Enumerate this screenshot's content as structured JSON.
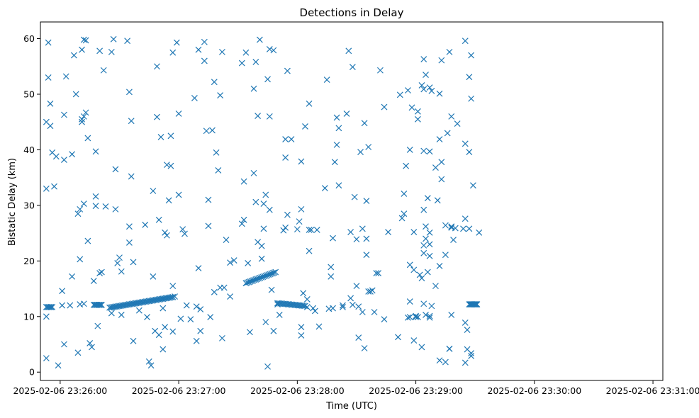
{
  "chart_data": {
    "type": "scatter",
    "title": "Detections in Delay",
    "xlabel": "Time (UTC)",
    "ylabel": "Bistatic Delay (km)",
    "marker": "x",
    "color": "#1f77b4",
    "grid": false,
    "xlim": [
      "2025-02-06 23:25:50",
      "2025-02-06 23:31:05"
    ],
    "ylim": [
      -1.5,
      63
    ],
    "xticks": [
      "2025-02-06 23:26:00",
      "2025-02-06 23:27:00",
      "2025-02-06 23:28:00",
      "2025-02-06 23:29:00",
      "2025-02-06 23:30:00",
      "2025-02-06 23:31:00"
    ],
    "yticks": [
      0,
      10,
      20,
      30,
      40,
      50,
      60
    ],
    "x_format": "2025-02-06 HH:MM:SS (x values below are times HH:MM:SS)",
    "points": [
      [
        "23:25:53",
        45.0
      ],
      [
        "23:25:53",
        33.0
      ],
      [
        "23:25:53",
        10.0
      ],
      [
        "23:25:53",
        2.5
      ],
      [
        "23:25:54",
        59.3
      ],
      [
        "23:25:54",
        53.0
      ],
      [
        "23:25:55",
        44.3
      ],
      [
        "23:25:55",
        48.3
      ],
      [
        "23:25:56",
        39.5
      ],
      [
        "23:25:57",
        33.4
      ],
      [
        "23:25:58",
        38.8
      ],
      [
        "23:25:59",
        1.2
      ],
      [
        "23:26:01",
        12.0
      ],
      [
        "23:26:01",
        14.6
      ],
      [
        "23:26:02",
        38.2
      ],
      [
        "23:26:02",
        46.3
      ],
      [
        "23:26:02",
        5.0
      ],
      [
        "23:26:03",
        53.2
      ],
      [
        "23:26:05",
        12.0
      ],
      [
        "23:26:06",
        39.2
      ],
      [
        "23:26:06",
        17.2
      ],
      [
        "23:26:07",
        57.0
      ],
      [
        "23:26:08",
        50.0
      ],
      [
        "23:26:09",
        3.5
      ],
      [
        "23:26:09",
        28.5
      ],
      [
        "23:26:10",
        29.3
      ],
      [
        "23:26:10",
        20.3
      ],
      [
        "23:26:10",
        12.2
      ],
      [
        "23:26:11",
        45.5
      ],
      [
        "23:26:11",
        45.0
      ],
      [
        "23:26:11",
        58.0
      ],
      [
        "23:26:12",
        46.0
      ],
      [
        "23:26:12",
        59.8
      ],
      [
        "23:26:12",
        30.3
      ],
      [
        "23:26:12",
        12.3
      ],
      [
        "23:26:13",
        59.7
      ],
      [
        "23:26:13",
        46.7
      ],
      [
        "23:26:14",
        42.1
      ],
      [
        "23:26:14",
        23.6
      ],
      [
        "23:26:15",
        5.2
      ],
      [
        "23:26:16",
        4.5
      ],
      [
        "23:26:17",
        16.4
      ],
      [
        "23:26:18",
        39.7
      ],
      [
        "23:26:18",
        31.6
      ],
      [
        "23:26:18",
        29.9
      ],
      [
        "23:26:19",
        8.3
      ],
      [
        "23:26:20",
        57.8
      ],
      [
        "23:26:20",
        17.8
      ],
      [
        "23:26:21",
        18.0
      ],
      [
        "23:26:22",
        54.3
      ],
      [
        "23:26:23",
        29.8
      ],
      [
        "23:26:26",
        57.6
      ],
      [
        "23:26:26",
        10.6
      ],
      [
        "23:26:27",
        59.9
      ],
      [
        "23:26:28",
        29.3
      ],
      [
        "23:26:28",
        36.5
      ],
      [
        "23:26:29",
        19.6
      ],
      [
        "23:26:30",
        20.6
      ],
      [
        "23:26:31",
        18.1
      ],
      [
        "23:26:31",
        10.3
      ],
      [
        "23:26:34",
        59.6
      ],
      [
        "23:26:35",
        50.4
      ],
      [
        "23:26:35",
        26.2
      ],
      [
        "23:26:35",
        23.3
      ],
      [
        "23:26:36",
        45.2
      ],
      [
        "23:26:36",
        35.2
      ],
      [
        "23:26:37",
        19.8
      ],
      [
        "23:26:37",
        5.6
      ],
      [
        "23:26:40",
        11.1
      ],
      [
        "23:26:43",
        26.5
      ],
      [
        "23:26:44",
        9.9
      ],
      [
        "23:26:45",
        1.9
      ],
      [
        "23:26:46",
        1.2
      ],
      [
        "23:26:47",
        17.2
      ],
      [
        "23:26:47",
        32.6
      ],
      [
        "23:26:48",
        7.4
      ],
      [
        "23:26:49",
        55.0
      ],
      [
        "23:26:49",
        45.9
      ],
      [
        "23:26:50",
        27.4
      ],
      [
        "23:26:50",
        6.7
      ],
      [
        "23:26:51",
        42.3
      ],
      [
        "23:26:52",
        11.5
      ],
      [
        "23:26:52",
        4.1
      ],
      [
        "23:26:53",
        25.1
      ],
      [
        "23:26:53",
        8.1
      ],
      [
        "23:26:54",
        37.3
      ],
      [
        "23:26:54",
        24.6
      ],
      [
        "23:26:55",
        30.9
      ],
      [
        "23:26:56",
        42.5
      ],
      [
        "23:26:56",
        37.1
      ],
      [
        "23:26:57",
        57.5
      ],
      [
        "23:26:57",
        15.5
      ],
      [
        "23:26:57",
        7.3
      ],
      [
        "23:26:58",
        13.6
      ],
      [
        "23:26:59",
        59.3
      ],
      [
        "23:27:00",
        46.5
      ],
      [
        "23:27:00",
        31.9
      ],
      [
        "23:27:01",
        9.6
      ],
      [
        "23:27:02",
        25.7
      ],
      [
        "23:27:03",
        24.9
      ],
      [
        "23:27:04",
        12.0
      ],
      [
        "23:27:06",
        9.5
      ],
      [
        "23:27:08",
        49.3
      ],
      [
        "23:27:09",
        5.6
      ],
      [
        "23:27:09",
        11.8
      ],
      [
        "23:27:10",
        18.7
      ],
      [
        "23:27:10",
        58.0
      ],
      [
        "23:27:11",
        11.3
      ],
      [
        "23:27:11",
        7.4
      ],
      [
        "23:27:13",
        59.4
      ],
      [
        "23:27:13",
        56.0
      ],
      [
        "23:27:14",
        43.4
      ],
      [
        "23:27:15",
        26.3
      ],
      [
        "23:27:15",
        31.0
      ],
      [
        "23:27:16",
        9.9
      ],
      [
        "23:27:17",
        43.5
      ],
      [
        "23:27:18",
        52.2
      ],
      [
        "23:27:18",
        14.4
      ],
      [
        "23:27:19",
        39.5
      ],
      [
        "23:27:20",
        36.3
      ],
      [
        "23:27:21",
        49.8
      ],
      [
        "23:27:21",
        15.2
      ],
      [
        "23:27:22",
        6.1
      ],
      [
        "23:27:22",
        57.6
      ],
      [
        "23:27:23",
        15.2
      ],
      [
        "23:27:24",
        23.8
      ],
      [
        "23:27:26",
        19.7
      ],
      [
        "23:27:26",
        13.6
      ],
      [
        "23:27:28",
        20.1
      ],
      [
        "23:27:32",
        26.7
      ],
      [
        "23:27:32",
        55.6
      ],
      [
        "23:27:33",
        34.3
      ],
      [
        "23:27:33",
        27.4
      ],
      [
        "23:27:34",
        57.5
      ],
      [
        "23:27:35",
        19.6
      ],
      [
        "23:27:36",
        7.2
      ],
      [
        "23:27:38",
        51.0
      ],
      [
        "23:27:38",
        35.8
      ],
      [
        "23:27:39",
        55.8
      ],
      [
        "23:27:39",
        30.6
      ],
      [
        "23:27:40",
        23.4
      ],
      [
        "23:27:40",
        46.1
      ],
      [
        "23:27:41",
        59.8
      ],
      [
        "23:27:42",
        20.4
      ],
      [
        "23:27:42",
        22.7
      ],
      [
        "23:27:43",
        25.8
      ],
      [
        "23:27:43",
        30.3
      ],
      [
        "23:27:44",
        31.9
      ],
      [
        "23:27:44",
        9.0
      ],
      [
        "23:27:45",
        1.0
      ],
      [
        "23:27:45",
        52.7
      ],
      [
        "23:27:46",
        58.1
      ],
      [
        "23:27:46",
        46.0
      ],
      [
        "23:27:46",
        29.2
      ],
      [
        "23:27:47",
        14.8
      ],
      [
        "23:27:48",
        7.4
      ],
      [
        "23:27:48",
        57.9
      ],
      [
        "23:27:50",
        12.2
      ],
      [
        "23:27:51",
        10.3
      ],
      [
        "23:27:53",
        25.5
      ],
      [
        "23:27:54",
        26.0
      ],
      [
        "23:27:54",
        38.6
      ],
      [
        "23:27:54",
        41.9
      ],
      [
        "23:27:55",
        54.2
      ],
      [
        "23:27:55",
        28.3
      ],
      [
        "23:27:57",
        41.9
      ],
      [
        "23:28:00",
        25.7
      ],
      [
        "23:28:01",
        27.1
      ],
      [
        "23:28:02",
        37.9
      ],
      [
        "23:28:02",
        29.3
      ],
      [
        "23:28:02",
        8.1
      ],
      [
        "23:28:02",
        6.6
      ],
      [
        "23:28:03",
        14.2
      ],
      [
        "23:28:04",
        44.2
      ],
      [
        "23:28:05",
        11.7
      ],
      [
        "23:28:05",
        13.1
      ],
      [
        "23:28:06",
        21.8
      ],
      [
        "23:28:06",
        48.3
      ],
      [
        "23:28:06",
        25.6
      ],
      [
        "23:28:07",
        25.6
      ],
      [
        "23:28:08",
        11.5
      ],
      [
        "23:28:09",
        11.0
      ],
      [
        "23:28:10",
        25.6
      ],
      [
        "23:28:11",
        8.2
      ],
      [
        "23:28:14",
        33.1
      ],
      [
        "23:28:15",
        52.6
      ],
      [
        "23:28:16",
        11.4
      ],
      [
        "23:28:17",
        17.2
      ],
      [
        "23:28:17",
        18.9
      ],
      [
        "23:28:18",
        24.1
      ],
      [
        "23:28:18",
        11.5
      ],
      [
        "23:28:19",
        37.8
      ],
      [
        "23:28:20",
        45.8
      ],
      [
        "23:28:20",
        40.9
      ],
      [
        "23:28:21",
        33.6
      ],
      [
        "23:28:21",
        43.9
      ],
      [
        "23:28:23",
        12.0
      ],
      [
        "23:28:23",
        11.7
      ],
      [
        "23:28:25",
        46.5
      ],
      [
        "23:28:26",
        57.8
      ],
      [
        "23:28:27",
        13.3
      ],
      [
        "23:28:27",
        25.2
      ],
      [
        "23:28:28",
        54.9
      ],
      [
        "23:28:28",
        12.1
      ],
      [
        "23:28:29",
        31.5
      ],
      [
        "23:28:30",
        23.9
      ],
      [
        "23:28:30",
        15.5
      ],
      [
        "23:28:31",
        6.2
      ],
      [
        "23:28:31",
        11.8
      ],
      [
        "23:28:32",
        39.6
      ],
      [
        "23:28:33",
        25.8
      ],
      [
        "23:28:33",
        10.8
      ],
      [
        "23:28:34",
        44.8
      ],
      [
        "23:28:34",
        4.3
      ],
      [
        "23:28:35",
        21.1
      ],
      [
        "23:28:35",
        30.8
      ],
      [
        "23:28:35",
        24.0
      ],
      [
        "23:28:36",
        14.5
      ],
      [
        "23:28:36",
        40.5
      ],
      [
        "23:28:37",
        14.5
      ],
      [
        "23:28:38",
        14.7
      ],
      [
        "23:28:39",
        10.8
      ],
      [
        "23:28:40",
        17.8
      ],
      [
        "23:28:41",
        17.8
      ],
      [
        "23:28:42",
        54.3
      ],
      [
        "23:28:44",
        9.5
      ],
      [
        "23:28:44",
        47.7
      ],
      [
        "23:28:46",
        25.2
      ],
      [
        "23:28:51",
        6.3
      ],
      [
        "23:28:52",
        49.9
      ],
      [
        "23:28:53",
        27.7
      ],
      [
        "23:28:54",
        28.5
      ],
      [
        "23:28:54",
        32.1
      ],
      [
        "23:28:55",
        37.1
      ],
      [
        "23:28:56",
        50.7
      ],
      [
        "23:28:56",
        9.8
      ],
      [
        "23:28:57",
        12.7
      ],
      [
        "23:28:57",
        9.9
      ],
      [
        "23:28:57",
        40.0
      ],
      [
        "23:28:57",
        19.3
      ],
      [
        "23:28:58",
        47.6
      ],
      [
        "23:28:59",
        5.7
      ],
      [
        "23:28:59",
        18.4
      ],
      [
        "23:28:59",
        25.2
      ],
      [
        "23:29:00",
        9.9
      ],
      [
        "23:29:00",
        10.1
      ],
      [
        "23:29:01",
        9.9
      ],
      [
        "23:29:01",
        45.5
      ],
      [
        "23:29:01",
        46.9
      ],
      [
        "23:29:02",
        17.5
      ],
      [
        "23:29:03",
        4.5
      ],
      [
        "23:29:03",
        16.9
      ],
      [
        "23:29:03",
        51.6
      ],
      [
        "23:29:04",
        50.9
      ],
      [
        "23:29:04",
        56.3
      ],
      [
        "23:29:04",
        39.8
      ],
      [
        "23:29:04",
        22.8
      ],
      [
        "23:29:04",
        21.4
      ],
      [
        "23:29:04",
        29.2
      ],
      [
        "23:29:04",
        12.3
      ],
      [
        "23:29:05",
        53.5
      ],
      [
        "23:29:05",
        24.0
      ],
      [
        "23:29:05",
        26.2
      ],
      [
        "23:29:05",
        10.3
      ],
      [
        "23:29:06",
        31.3
      ],
      [
        "23:29:06",
        18.0
      ],
      [
        "23:29:07",
        10.1
      ],
      [
        "23:29:07",
        51.2
      ],
      [
        "23:29:07",
        39.7
      ],
      [
        "23:29:07",
        23.0
      ],
      [
        "23:29:07",
        20.9
      ],
      [
        "23:29:07",
        25.1
      ],
      [
        "23:29:07",
        9.8
      ],
      [
        "23:29:08",
        50.6
      ],
      [
        "23:29:08",
        11.9
      ],
      [
        "23:29:10",
        36.8
      ],
      [
        "23:29:10",
        15.5
      ],
      [
        "23:29:11",
        30.9
      ],
      [
        "23:29:12",
        41.9
      ],
      [
        "23:29:12",
        50.1
      ],
      [
        "23:29:12",
        19.1
      ],
      [
        "23:29:12",
        2.1
      ],
      [
        "23:29:13",
        56.1
      ],
      [
        "23:29:13",
        37.8
      ],
      [
        "23:29:13",
        34.7
      ],
      [
        "23:29:15",
        26.4
      ],
      [
        "23:29:15",
        21.1
      ],
      [
        "23:29:15",
        1.8
      ],
      [
        "23:29:16",
        43.0
      ],
      [
        "23:29:17",
        4.2
      ],
      [
        "23:29:17",
        4.2
      ],
      [
        "23:29:17",
        57.6
      ],
      [
        "23:29:18",
        26.2
      ],
      [
        "23:29:18",
        26.0
      ],
      [
        "23:29:18",
        46.0
      ],
      [
        "23:29:18",
        10.3
      ],
      [
        "23:29:19",
        23.8
      ],
      [
        "23:29:20",
        25.9
      ],
      [
        "23:29:21",
        44.7
      ],
      [
        "23:29:24",
        25.8
      ],
      [
        "23:29:25",
        59.6
      ],
      [
        "23:29:25",
        27.6
      ],
      [
        "23:29:25",
        41.1
      ],
      [
        "23:29:25",
        1.7
      ],
      [
        "23:29:25",
        8.9
      ],
      [
        "23:29:26",
        4.1
      ],
      [
        "23:29:26",
        7.6
      ],
      [
        "23:29:27",
        39.6
      ],
      [
        "23:29:27",
        25.8
      ],
      [
        "23:29:27",
        53.1
      ],
      [
        "23:29:28",
        49.2
      ],
      [
        "23:29:28",
        57.0
      ],
      [
        "23:29:28",
        3.4
      ],
      [
        "23:29:28",
        2.9
      ],
      [
        "23:29:29",
        33.6
      ],
      [
        "23:29:32",
        25.1
      ]
    ],
    "tracks": [
      {
        "from": [
          "23:25:53",
          11.7
        ],
        "to": [
          "23:25:56",
          11.7
        ],
        "n": 6
      },
      {
        "from": [
          "23:26:17",
          12.1
        ],
        "to": [
          "23:26:21",
          12.1
        ],
        "n": 8
      },
      {
        "from": [
          "23:26:25",
          11.6
        ],
        "to": [
          "23:26:57",
          13.5
        ],
        "n": 46
      },
      {
        "from": [
          "23:27:34",
          16.0
        ],
        "to": [
          "23:27:49",
          18.0
        ],
        "n": 22
      },
      {
        "from": [
          "23:27:50",
          12.4
        ],
        "to": [
          "23:28:04",
          11.9
        ],
        "n": 20
      },
      {
        "from": [
          "23:29:27",
          12.2
        ],
        "to": [
          "23:29:31",
          12.2
        ],
        "n": 12
      }
    ]
  }
}
